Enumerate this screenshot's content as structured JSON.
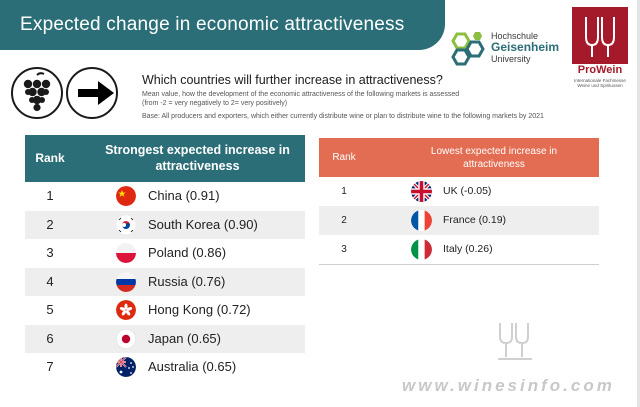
{
  "header": {
    "title": "Expected change in economic attractiveness"
  },
  "logos": {
    "geisenheim": {
      "line1": "Hochschule",
      "line2": "Geisenheim",
      "line3": "University"
    },
    "prowein": {
      "name": "ProWein",
      "sub1": "Internationale Fachmesse",
      "sub2": "Weine und Spirituosen"
    }
  },
  "intro": {
    "question": "Which countries will further increase in attractiveness?",
    "note1": "Mean value, how the development of the economic attractiveness of the following markets is assessed",
    "note2": "(from -2 = very negatively to 2= very positively)",
    "note3": "Base: All producers and exporters, which either currently distribute wine or plan to distribute wine to the following markets by 2021"
  },
  "strongest": {
    "rank_header": "Rank",
    "title": "Strongest  expected increase in attractiveness",
    "rows": [
      {
        "rank": "1",
        "country": "China (0.91)",
        "flag": "china-flag-icon"
      },
      {
        "rank": "2",
        "country": "South Korea (0.90)",
        "flag": "south-korea-flag-icon"
      },
      {
        "rank": "3",
        "country": "Poland (0.86)",
        "flag": "poland-flag-icon"
      },
      {
        "rank": "4",
        "country": "Russia (0.76)",
        "flag": "russia-flag-icon"
      },
      {
        "rank": "5",
        "country": "Hong Kong (0.72)",
        "flag": "hong-kong-flag-icon"
      },
      {
        "rank": "6",
        "country": "Japan (0.65)",
        "flag": "japan-flag-icon"
      },
      {
        "rank": "7",
        "country": "Australia (0.65)",
        "flag": "australia-flag-icon"
      }
    ]
  },
  "lowest": {
    "rank_header": "Rank",
    "title": "Lowest  expected increase in attractiveness",
    "rows": [
      {
        "rank": "1",
        "country": "UK (-0.05)",
        "flag": "uk-flag-icon"
      },
      {
        "rank": "2",
        "country": "France (0.19)",
        "flag": "france-flag-icon"
      },
      {
        "rank": "3",
        "country": "Italy (0.26)",
        "flag": "italy-flag-icon"
      }
    ]
  },
  "watermark": {
    "text": "www.winesinfo.com"
  },
  "colors": {
    "teal": "#2b6e77",
    "coral": "#e36d52",
    "prowein_red": "#a51a2b"
  }
}
